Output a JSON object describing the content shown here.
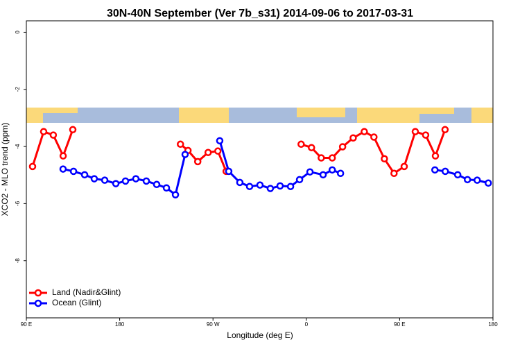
{
  "chart_data": {
    "type": "line",
    "title": "30N-40N September (Ver 7b_s31)   2014-09-06 to 2017-03-31",
    "x_label": "Longitude (deg E)",
    "y_label": "XCO2 - MLO trend (ppm)",
    "xlim": [
      90,
      540
    ],
    "xticks": [
      {
        "value": 90,
        "label": "90 E"
      },
      180,
      {
        "value": 270,
        "label": "90 W"
      },
      {
        "value": 360,
        "label": "0"
      },
      {
        "value": 450,
        "label": "90 E"
      },
      {
        "value": 540,
        "label": "180"
      }
    ],
    "ylim": [
      -10,
      0.4
    ],
    "yticks": [
      0,
      -2,
      -4,
      -6,
      -8
    ],
    "legend": "bottom-left",
    "series": [
      {
        "name": "Land (Nadir&Glint)",
        "color": "#ff0000",
        "x": [
          96,
          106.7,
          116,
          125.5,
          134.8,
          null,
          238.6,
          245.9,
          255.3,
          265.3,
          274.7,
          282.7,
          null,
          355,
          365,
          374.4,
          385,
          395,
          405.2,
          415.9,
          425.2,
          435.3,
          444.6,
          454.4,
          465.1,
          475.1,
          484.5,
          493.8
        ],
        "values": [
          -4.7,
          -3.48,
          -3.6,
          -4.33,
          -3.41,
          null,
          -3.92,
          -4.14,
          -4.53,
          -4.21,
          -4.16,
          -4.87,
          null,
          -3.92,
          -4.04,
          -4.4,
          -4.4,
          -4.01,
          -3.7,
          -3.48,
          -3.67,
          -4.43,
          -4.94,
          -4.7,
          -3.48,
          -3.6,
          -4.33,
          -3.41
        ]
      },
      {
        "name": "Ocean (Glint)",
        "color": "#0000ff",
        "x": [
          125.4,
          135.5,
          146.2,
          155.5,
          165.6,
          176.3,
          185.6,
          195.6,
          205.7,
          215.7,
          225.1,
          233.8,
          243.1,
          null,
          276.5,
          285.2,
          295.9,
          305.3,
          315.3,
          325.3,
          334.7,
          344.8,
          353.5,
          363.5,
          376.2,
          385,
          393,
          null,
          484,
          494,
          506,
          515.4,
          524.8,
          535.5
        ],
        "values": [
          -4.79,
          -4.87,
          -4.99,
          -5.13,
          -5.18,
          -5.3,
          -5.21,
          -5.13,
          -5.21,
          -5.33,
          -5.45,
          -5.69,
          -4.28,
          null,
          -3.8,
          -4.87,
          -5.26,
          -5.4,
          -5.35,
          -5.47,
          -5.38,
          -5.4,
          -5.16,
          -4.89,
          -4.99,
          -4.82,
          -4.94,
          null,
          -4.82,
          -4.87,
          -4.99,
          -5.16,
          -5.18,
          -5.28
        ]
      }
    ]
  }
}
